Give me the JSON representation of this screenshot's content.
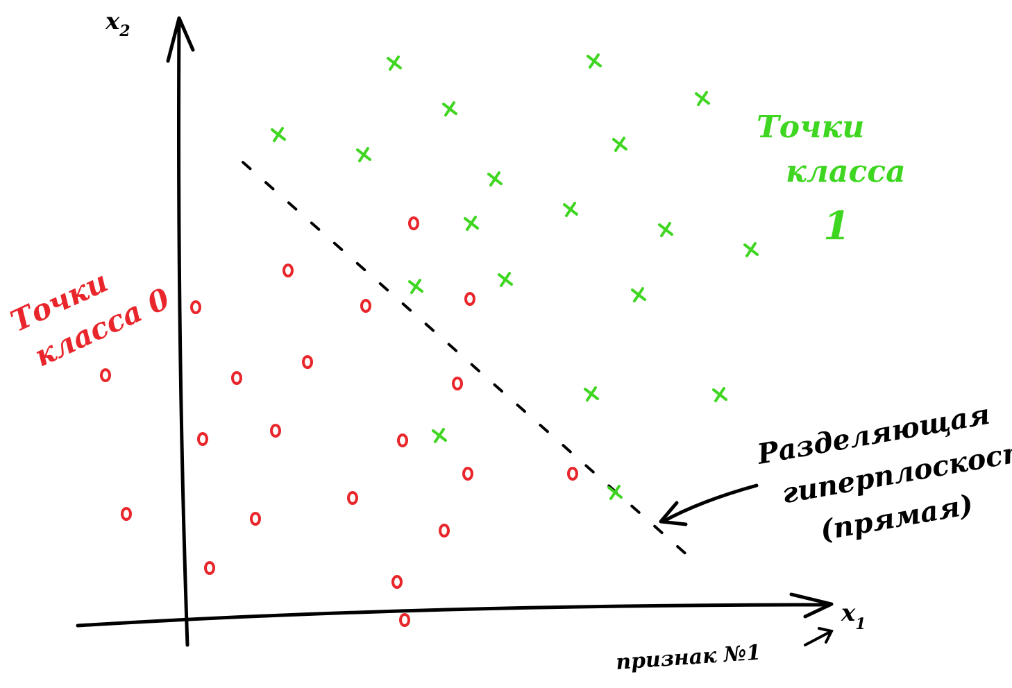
{
  "axes": {
    "x_label": "x",
    "x_sub": "1",
    "y_label": "x",
    "y_sub": "2",
    "x_caption": "признак №1"
  },
  "annotations": {
    "class0_line1": "Точки",
    "class0_line2": "класса 0",
    "class1_line1": "Точки",
    "class1_line2": "класса",
    "class1_line3": "1",
    "hyperplane_line1": "Разделяющая",
    "hyperplane_line2": "гиперплоскость",
    "hyperplane_line3": "(прямая)"
  },
  "colors": {
    "class0": "#e8262b",
    "class1": "#3fd621",
    "ink": "#000000"
  },
  "chart_data": {
    "type": "scatter",
    "x_unit": "screen-relative units (no ticks printed)",
    "series": [
      {
        "marker": "o",
        "color": "#e8262b",
        "points": [
          [
            596,
            322
          ],
          [
            415,
            390
          ],
          [
            282,
            443
          ],
          [
            527,
            441
          ],
          [
            677,
            431
          ],
          [
            152,
            541
          ],
          [
            341,
            545
          ],
          [
            443,
            522
          ],
          [
            659,
            553
          ],
          [
            292,
            633
          ],
          [
            397,
            621
          ],
          [
            580,
            635
          ],
          [
            674,
            683
          ],
          [
            825,
            683
          ],
          [
            182,
            741
          ],
          [
            508,
            718
          ],
          [
            368,
            748
          ],
          [
            640,
            765
          ],
          [
            302,
            819
          ],
          [
            572,
            839
          ],
          [
            583,
            894
          ]
        ]
      },
      {
        "marker": "x",
        "color": "#3fd621",
        "points": [
          [
            568,
            91
          ],
          [
            856,
            88
          ],
          [
            648,
            157
          ],
          [
            1012,
            142
          ],
          [
            401,
            194
          ],
          [
            524,
            223
          ],
          [
            893,
            208
          ],
          [
            713,
            258
          ],
          [
            679,
            322
          ],
          [
            822,
            302
          ],
          [
            959,
            331
          ],
          [
            1082,
            360
          ],
          [
            599,
            413
          ],
          [
            728,
            403
          ],
          [
            920,
            425
          ],
          [
            852,
            568
          ],
          [
            1037,
            569
          ],
          [
            633,
            628
          ],
          [
            886,
            710
          ]
        ]
      }
    ],
    "hyperplane": {
      "style": "dashed",
      "from": [
        350,
        234
      ],
      "to": [
        992,
        802
      ]
    }
  }
}
